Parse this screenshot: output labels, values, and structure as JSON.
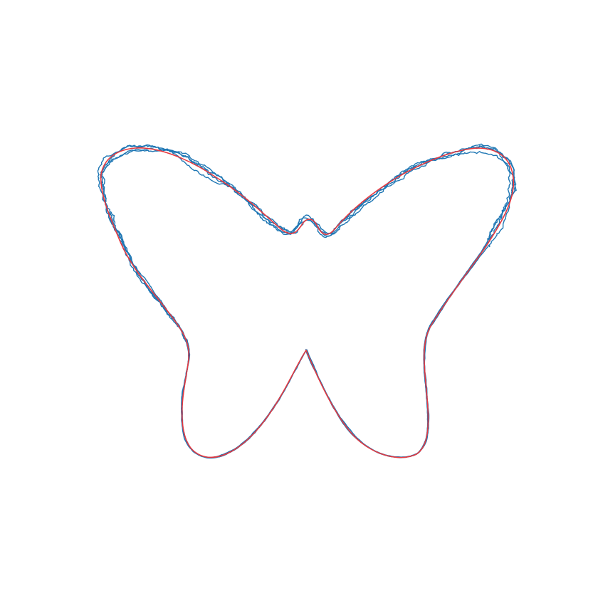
{
  "figure": {
    "background_color": "#ffffff",
    "reference_color": "#e8393f",
    "trajectory_color": "#1f77b4"
  }
}
